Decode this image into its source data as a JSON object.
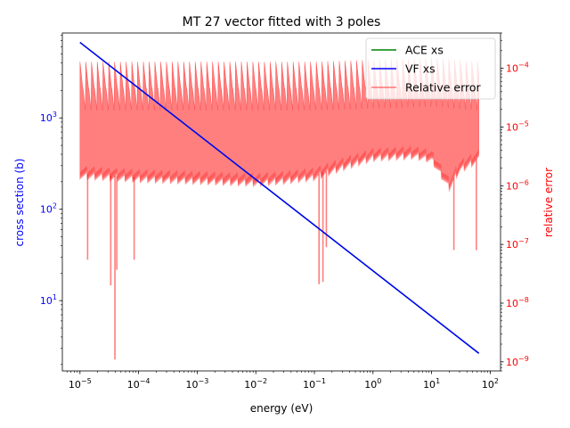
{
  "chart_data": {
    "type": "line",
    "title": "MT 27 vector fitted with 3 poles",
    "xlabel": "energy (eV)",
    "ylabel_left": "cross section (b)",
    "ylabel_right": "relative error",
    "xscale": "log",
    "yscale_left": "log",
    "yscale_right": "log",
    "xlim": [
      5e-06,
      150
    ],
    "ylim_left": [
      1.7,
      8500
    ],
    "ylim_right": [
      7e-10,
      0.0004
    ],
    "x_ticks": [
      {
        "value": 1e-05,
        "base": "10",
        "exp": "−5"
      },
      {
        "value": 0.0001,
        "base": "10",
        "exp": "−4"
      },
      {
        "value": 0.001,
        "base": "10",
        "exp": "−3"
      },
      {
        "value": 0.01,
        "base": "10",
        "exp": "−2"
      },
      {
        "value": 0.1,
        "base": "10",
        "exp": "−1"
      },
      {
        "value": 1,
        "base": "10",
        "exp": "0"
      },
      {
        "value": 10,
        "base": "10",
        "exp": "1"
      },
      {
        "value": 100,
        "base": "10",
        "exp": "2"
      }
    ],
    "y_left_ticks": [
      {
        "value": 10,
        "base": "10",
        "exp": "1"
      },
      {
        "value": 100,
        "base": "10",
        "exp": "2"
      },
      {
        "value": 1000,
        "base": "10",
        "exp": "3"
      }
    ],
    "y_right_ticks": [
      {
        "value": 1e-09,
        "base": "10",
        "exp": "−9"
      },
      {
        "value": 1e-08,
        "base": "10",
        "exp": "−8"
      },
      {
        "value": 1e-07,
        "base": "10",
        "exp": "−7"
      },
      {
        "value": 1e-06,
        "base": "10",
        "exp": "−6"
      },
      {
        "value": 1e-05,
        "base": "10",
        "exp": "−5"
      },
      {
        "value": 0.0001,
        "base": "10",
        "exp": "−4"
      }
    ],
    "legend_position": "top-right",
    "series": [
      {
        "name": "ACE xs",
        "color": "#008000",
        "axis": "left",
        "x": [
          1e-05,
          64
        ],
        "y": [
          6700,
          2.65
        ]
      },
      {
        "name": "VF xs",
        "color": "#0000ff",
        "axis": "left",
        "x": [
          1e-05,
          64
        ],
        "y": [
          6700,
          2.65
        ]
      },
      {
        "name": "Relative error",
        "color": "#ff0000",
        "opacity": 0.5,
        "axis": "right",
        "style": "band",
        "upper_envelope": {
          "x": [
            1e-05,
            0.0001,
            0.001,
            0.01,
            0.1,
            1,
            10,
            64
          ],
          "y": [
            0.00013,
            0.00013,
            0.00013,
            0.00013,
            0.00013,
            0.00014,
            0.00015,
            0.00013
          ]
        },
        "lower_envelope": {
          "x": [
            1e-05,
            3e-05,
            0.0001,
            0.001,
            0.01,
            0.03,
            0.1,
            0.3,
            1,
            3,
            5,
            10,
            20,
            30,
            64
          ],
          "y": [
            1.6e-06,
            1.5e-06,
            1.4e-06,
            1.3e-06,
            1.2e-06,
            1.3e-06,
            1.5e-06,
            2.2e-06,
            3.2e-06,
            3.4e-06,
            3.5e-06,
            3e-06,
            1e-06,
            2e-06,
            3e-06
          ]
        },
        "dips": [
          {
            "x": 1.35e-05,
            "y": 5.5e-08
          },
          {
            "x": 3.35e-05,
            "y": 2e-08
          },
          {
            "x": 3.95e-05,
            "y": 1.1e-09
          },
          {
            "x": 4.25e-05,
            "y": 3.7e-08
          },
          {
            "x": 8.4e-05,
            "y": 5.5e-08
          },
          {
            "x": 0.12,
            "y": 2.1e-08
          },
          {
            "x": 0.14,
            "y": 2.3e-08
          },
          {
            "x": 0.16,
            "y": 9e-08
          },
          {
            "x": 24,
            "y": 8e-08
          },
          {
            "x": 58,
            "y": 8e-08
          }
        ]
      }
    ]
  }
}
